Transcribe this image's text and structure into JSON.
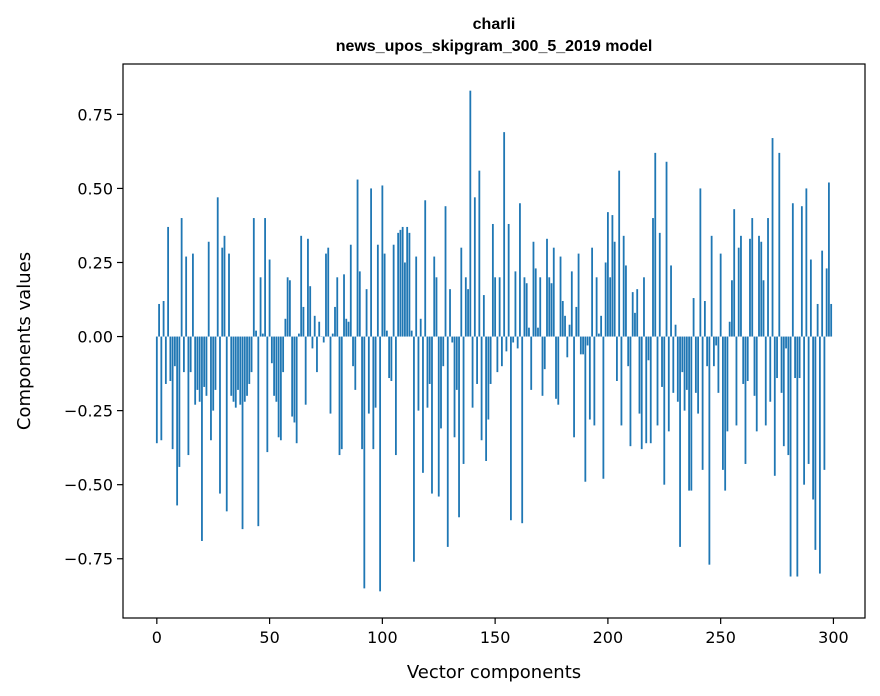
{
  "chart_data": {
    "type": "bar",
    "title": [
      "charli",
      "news_upos_skipgram_300_5_2019 model"
    ],
    "xlabel": "Vector components",
    "ylabel": "Components values",
    "xlim": [
      -15,
      314
    ],
    "ylim": [
      -0.95,
      0.92
    ],
    "xticks": [
      0,
      50,
      100,
      150,
      200,
      250,
      300
    ],
    "xtick_labels": [
      "0",
      "50",
      "100",
      "150",
      "200",
      "250",
      "300"
    ],
    "yticks": [
      -0.75,
      -0.5,
      -0.25,
      0.0,
      0.25,
      0.5,
      0.75
    ],
    "ytick_labels": [
      "−0.75",
      "−0.50",
      "−0.25",
      "0.00",
      "0.25",
      "0.50",
      "0.75"
    ],
    "bar_color": "#1f77b4",
    "values": [
      -0.36,
      0.11,
      -0.35,
      0.12,
      -0.16,
      0.37,
      -0.15,
      -0.38,
      -0.1,
      -0.57,
      -0.44,
      0.4,
      -0.12,
      0.27,
      -0.4,
      -0.12,
      0.28,
      -0.23,
      -0.18,
      -0.22,
      -0.69,
      -0.17,
      -0.2,
      0.32,
      -0.35,
      -0.25,
      -0.18,
      0.47,
      -0.53,
      0.3,
      0.34,
      -0.59,
      0.28,
      -0.2,
      -0.22,
      -0.24,
      -0.18,
      -0.23,
      -0.65,
      -0.22,
      -0.2,
      -0.16,
      -0.12,
      0.4,
      0.02,
      -0.64,
      0.2,
      0.01,
      0.4,
      -0.39,
      0.26,
      -0.09,
      -0.2,
      -0.22,
      -0.34,
      -0.35,
      -0.12,
      0.06,
      0.2,
      0.19,
      -0.27,
      -0.29,
      -0.36,
      0.01,
      0.34,
      0.1,
      -0.23,
      0.33,
      0.17,
      -0.04,
      0.07,
      -0.12,
      0.05,
      0.0,
      -0.02,
      0.28,
      0.3,
      -0.26,
      0.01,
      0.1,
      0.2,
      -0.4,
      -0.38,
      0.21,
      0.06,
      0.05,
      0.31,
      -0.1,
      -0.18,
      0.53,
      0.22,
      -0.38,
      -0.85,
      0.16,
      -0.26,
      0.5,
      -0.38,
      -0.24,
      0.31,
      -0.86,
      0.51,
      0.28,
      0.02,
      -0.14,
      -0.15,
      0.31,
      -0.4,
      0.35,
      0.36,
      0.37,
      0.25,
      0.37,
      0.35,
      0.02,
      -0.76,
      0.27,
      -0.25,
      0.06,
      -0.46,
      0.46,
      -0.24,
      -0.16,
      -0.53,
      0.27,
      0.2,
      -0.54,
      -0.31,
      -0.1,
      0.44,
      -0.71,
      0.16,
      -0.02,
      -0.34,
      -0.18,
      -0.61,
      0.3,
      -0.43,
      0.2,
      0.16,
      0.83,
      -0.24,
      0.47,
      -0.16,
      0.56,
      -0.35,
      0.14,
      -0.42,
      -0.28,
      -0.16,
      0.38,
      0.2,
      -0.12,
      0.2,
      -0.1,
      0.69,
      -0.05,
      0.38,
      -0.62,
      -0.02,
      0.22,
      -0.04,
      0.45,
      -0.63,
      0.2,
      0.18,
      0.03,
      -0.18,
      0.32,
      0.23,
      0.03,
      0.2,
      -0.2,
      -0.11,
      0.33,
      0.2,
      0.18,
      0.3,
      -0.21,
      -0.23,
      0.27,
      0.12,
      0.07,
      -0.07,
      0.04,
      0.22,
      -0.34,
      0.1,
      0.28,
      -0.06,
      -0.06,
      -0.49,
      -0.03,
      -0.28,
      0.3,
      -0.3,
      0.2,
      0.01,
      0.07,
      -0.48,
      0.25,
      0.42,
      0.2,
      0.41,
      0.32,
      -0.15,
      0.56,
      -0.3,
      0.34,
      0.24,
      -0.1,
      -0.37,
      0.15,
      0.08,
      0.16,
      -0.26,
      -0.38,
      0.2,
      -0.36,
      -0.08,
      -0.36,
      0.4,
      0.62,
      -0.3,
      0.35,
      -0.17,
      -0.5,
      0.59,
      -0.32,
      0.24,
      -0.19,
      0.04,
      -0.22,
      -0.71,
      -0.12,
      -0.25,
      -0.18,
      -0.52,
      -0.52,
      0.13,
      -0.19,
      -0.26,
      0.5,
      -0.45,
      0.12,
      -0.1,
      -0.77,
      0.34,
      -0.1,
      -0.03,
      -0.19,
      0.28,
      -0.45,
      -0.52,
      -0.32,
      0.05,
      0.19,
      0.43,
      -0.3,
      0.3,
      0.34,
      -0.16,
      -0.43,
      -0.15,
      0.33,
      0.4,
      -0.2,
      -0.32,
      0.34,
      0.32,
      0.19,
      -0.3,
      0.4,
      -0.22,
      0.67,
      -0.47,
      -0.14,
      0.62,
      -0.19,
      -0.37,
      -0.04,
      -0.4,
      -0.81,
      0.45,
      -0.14,
      -0.81,
      -0.14,
      0.44,
      -0.5,
      0.5,
      -0.43,
      0.26,
      -0.55,
      -0.72,
      0.11,
      -0.8,
      0.29,
      -0.45,
      0.23,
      0.52,
      0.11
    ]
  }
}
